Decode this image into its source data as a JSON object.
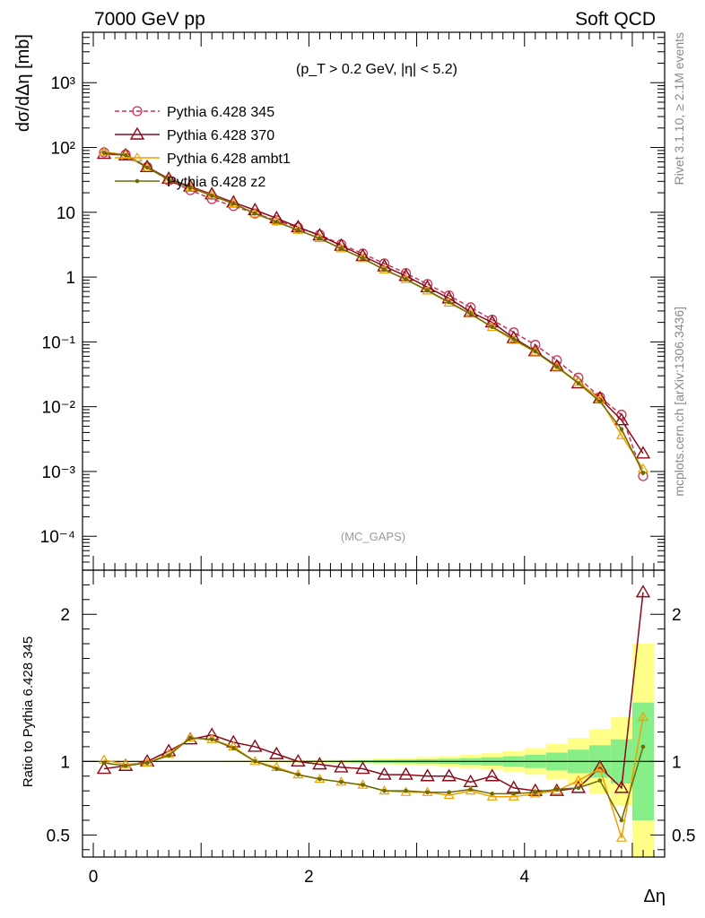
{
  "header": {
    "left_label": "7000 GeV pp",
    "right_label": "Soft QCD"
  },
  "side_text": {
    "rivet": "Rivet 3.1.10, ≥ 2.1M events",
    "mcplots": "mcplots.cern.ch [arXiv:1306.3436]"
  },
  "chart_data": [
    {
      "type": "line",
      "panel": "main",
      "y_scale": "log",
      "title": "(p_T > 0.2 GeV, |η| < 5.2)",
      "watermark": "(MC_GAPS)",
      "ylabel": "dσ/dΔη [mb]",
      "xlim": [
        -0.1,
        5.3
      ],
      "ylim": [
        3e-05,
        6000
      ],
      "y_ticks": [
        "10⁻⁴",
        "10⁻³",
        "10⁻²",
        "10⁻¹",
        "1",
        "10",
        "10²",
        "10³"
      ],
      "legend_position": "top-left",
      "x": [
        0.1,
        0.3,
        0.5,
        0.7,
        0.9,
        1.1,
        1.3,
        1.5,
        1.7,
        1.9,
        2.1,
        2.3,
        2.5,
        2.7,
        2.9,
        3.1,
        3.3,
        3.5,
        3.7,
        3.9,
        4.1,
        4.3,
        4.5,
        4.7,
        4.9,
        5.1
      ],
      "series": [
        {
          "name": "Pythia 6.428 345",
          "color": "#cc3355",
          "style": "dashed",
          "marker": "open-circle",
          "values": [
            84,
            78,
            50,
            31,
            22,
            16,
            12.5,
            9.6,
            7.5,
            5.8,
            4.5,
            3.2,
            2.3,
            1.62,
            1.15,
            0.78,
            0.52,
            0.34,
            0.22,
            0.14,
            0.09,
            0.052,
            0.028,
            0.014,
            0.0075,
            0.00085
          ]
        },
        {
          "name": "Pythia 6.428 370",
          "color": "#8b0a1a",
          "style": "solid",
          "marker": "open-triangle",
          "values": [
            80,
            76,
            50,
            33,
            25,
            19,
            14.2,
            10.8,
            8.1,
            5.9,
            4.4,
            3.05,
            2.12,
            1.47,
            1.04,
            0.7,
            0.47,
            0.29,
            0.2,
            0.115,
            0.072,
            0.042,
            0.023,
            0.0135,
            0.0062,
            0.0019
          ]
        },
        {
          "name": "Pythia 6.428 ambt1",
          "color": "#f0a000",
          "style": "solid",
          "marker": "small-triangle",
          "values": [
            85,
            77,
            49,
            32,
            24,
            18.4,
            13.6,
            9.5,
            7.2,
            5.3,
            3.95,
            2.75,
            1.94,
            1.3,
            0.92,
            0.615,
            0.4,
            0.27,
            0.168,
            0.106,
            0.07,
            0.041,
            0.024,
            0.013,
            0.0036,
            0.0011
          ]
        },
        {
          "name": "Pythia 6.428 z2",
          "color": "#6b6b00",
          "style": "solid",
          "marker": "dot",
          "values": [
            83,
            76,
            49,
            32,
            24,
            18,
            13.6,
            9.6,
            7.1,
            5.3,
            3.95,
            2.75,
            1.94,
            1.3,
            0.92,
            0.62,
            0.41,
            0.27,
            0.17,
            0.11,
            0.071,
            0.041,
            0.023,
            0.012,
            0.0045,
            0.00095
          ]
        }
      ]
    },
    {
      "type": "line",
      "panel": "ratio",
      "ylabel": "Ratio to Pythia 6.428 345",
      "xlabel": "Δη",
      "xlim": [
        -0.1,
        5.3
      ],
      "ylim": [
        0.35,
        2.3
      ],
      "x_ticks": [
        "0",
        "2",
        "4"
      ],
      "y_ticks": [
        "0.5",
        "1",
        "2"
      ],
      "x": [
        0.1,
        0.3,
        0.5,
        0.7,
        0.9,
        1.1,
        1.3,
        1.5,
        1.7,
        1.9,
        2.1,
        2.3,
        2.5,
        2.7,
        2.9,
        3.1,
        3.3,
        3.5,
        3.7,
        3.9,
        4.1,
        4.3,
        4.5,
        4.7,
        4.9,
        5.1
      ],
      "band_inner": [
        0.002,
        0.002,
        0.002,
        0.002,
        0.002,
        0.002,
        0.002,
        0.003,
        0.003,
        0.004,
        0.005,
        0.006,
        0.008,
        0.01,
        0.012,
        0.015,
        0.018,
        0.022,
        0.028,
        0.035,
        0.045,
        0.06,
        0.08,
        0.11,
        0.15,
        0.4
      ],
      "band_outer": [
        0.004,
        0.004,
        0.004,
        0.004,
        0.004,
        0.004,
        0.005,
        0.006,
        0.007,
        0.008,
        0.01,
        0.012,
        0.016,
        0.02,
        0.025,
        0.03,
        0.036,
        0.045,
        0.056,
        0.07,
        0.09,
        0.12,
        0.16,
        0.22,
        0.3,
        0.8
      ],
      "band_colors": {
        "inner": "#88ee88",
        "outer": "#ffff88"
      },
      "series": [
        {
          "name": "Pythia 6.428 370",
          "color": "#8b0a1a",
          "style": "solid",
          "marker": "open-triangle",
          "values": [
            0.95,
            0.97,
            1.0,
            1.07,
            1.15,
            1.18,
            1.13,
            1.1,
            1.05,
            1.0,
            0.98,
            0.96,
            0.95,
            0.91,
            0.91,
            0.9,
            0.9,
            0.86,
            0.9,
            0.82,
            0.8,
            0.8,
            0.82,
            0.96,
            0.82,
            2.15
          ]
        },
        {
          "name": "Pythia 6.428 ambt1",
          "color": "#f0a000",
          "style": "solid",
          "marker": "small-triangle",
          "values": [
            1.01,
            0.98,
            0.99,
            1.05,
            1.16,
            1.15,
            1.1,
            1.0,
            0.96,
            0.91,
            0.88,
            0.86,
            0.84,
            0.8,
            0.79,
            0.79,
            0.77,
            0.8,
            0.76,
            0.76,
            0.78,
            0.8,
            0.87,
            0.95,
            0.48,
            1.3
          ]
        },
        {
          "name": "Pythia 6.428 z2",
          "color": "#6b6b00",
          "style": "solid",
          "marker": "dot",
          "values": [
            0.99,
            0.97,
            0.99,
            1.04,
            1.16,
            1.15,
            1.09,
            1.0,
            0.95,
            0.91,
            0.88,
            0.86,
            0.84,
            0.8,
            0.8,
            0.79,
            0.79,
            0.81,
            0.78,
            0.78,
            0.79,
            0.81,
            0.82,
            0.87,
            0.6,
            1.1
          ]
        }
      ]
    }
  ]
}
